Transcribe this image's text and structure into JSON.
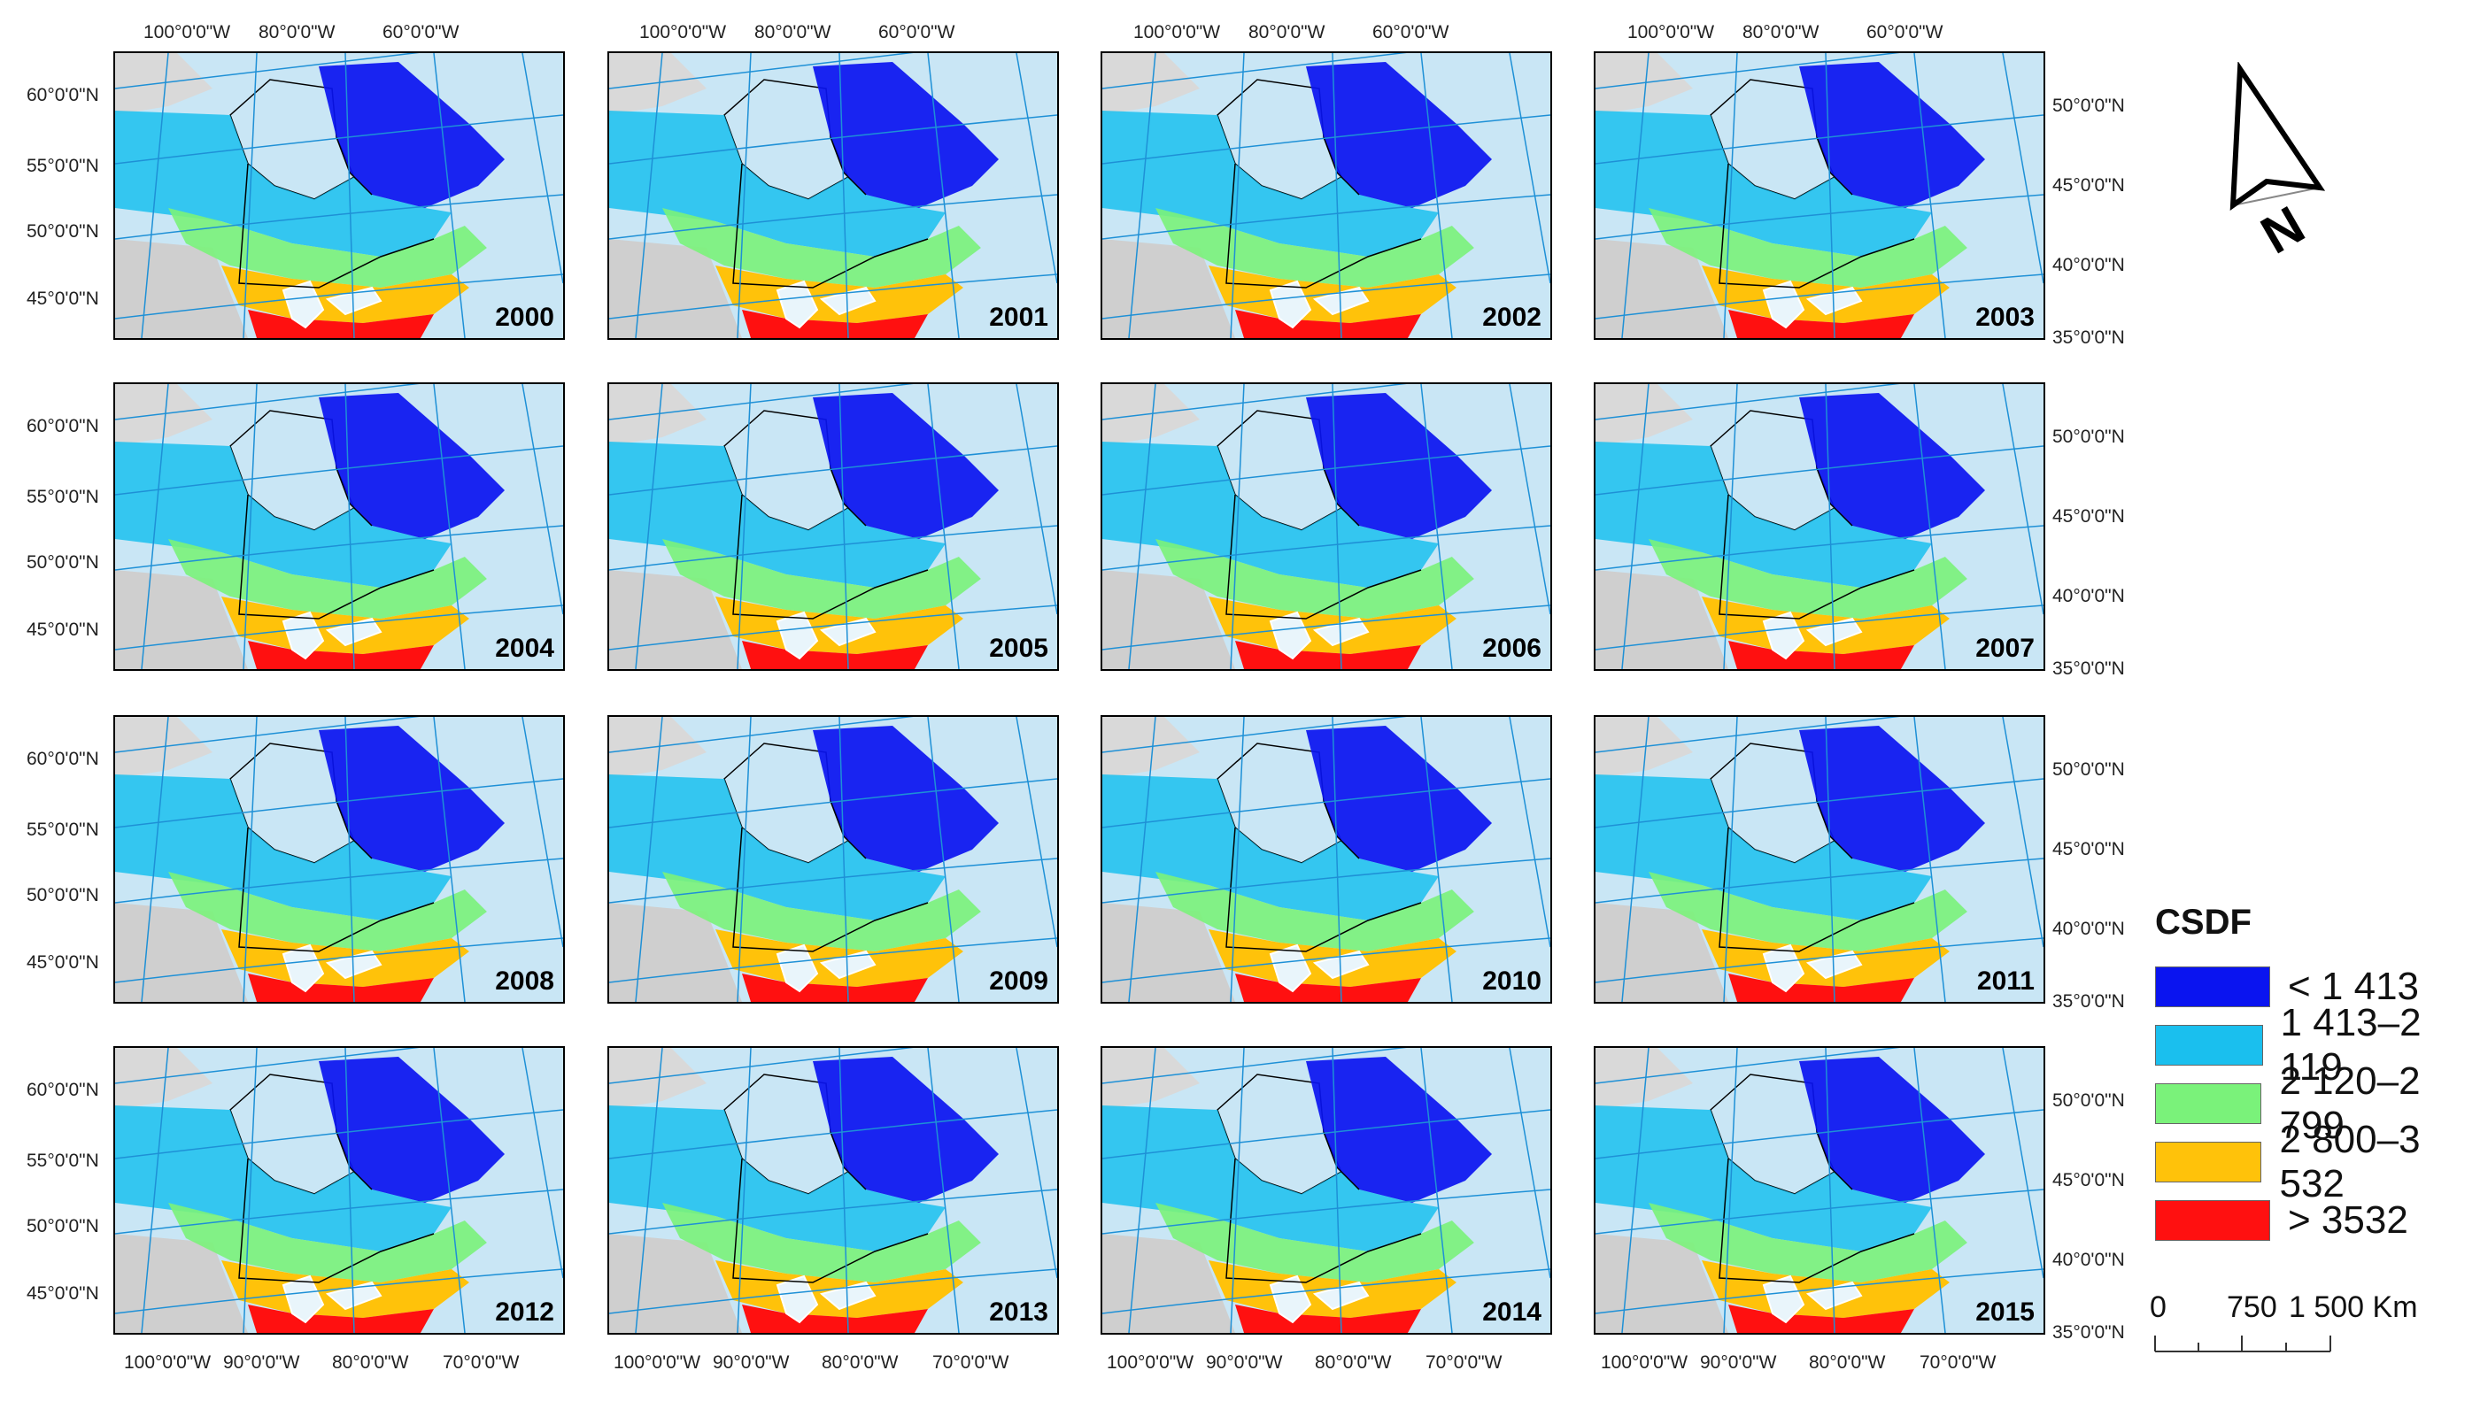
{
  "legend": {
    "title": "CSDF",
    "items": [
      {
        "label": "< 1 413",
        "color": "#0a14f0"
      },
      {
        "label": "1 413–2 119",
        "color": "#1abfee"
      },
      {
        "label": "2 120–2 799",
        "color": "#7af27a"
      },
      {
        "label": "2 800–3 532",
        "color": "#ffc20a"
      },
      {
        "label": "> 3532",
        "color": "#ff1010"
      }
    ]
  },
  "scale_bar": {
    "labels": [
      "0",
      "750",
      "1 500 Km"
    ]
  },
  "north_arrow": {
    "label": "N"
  },
  "axis_labels": {
    "top_lon": [
      "100°0'0\"W",
      "80°0'0\"W",
      "60°0'0\"W"
    ],
    "bottom_lon": [
      "100°0'0\"W",
      "90°0'0\"W",
      "80°0'0\"W",
      "70°0'0\"W"
    ],
    "left_lat": [
      "60°0'0\"N",
      "55°0'0\"N",
      "50°0'0\"N",
      "45°0'0\"N"
    ],
    "right_lat": [
      "50°0'0\"N",
      "45°0'0\"N",
      "40°0'0\"N",
      "35°0'0\"N"
    ]
  },
  "maps": [
    {
      "year": "2000"
    },
    {
      "year": "2001"
    },
    {
      "year": "2002"
    },
    {
      "year": "2003"
    },
    {
      "year": "2004"
    },
    {
      "year": "2005"
    },
    {
      "year": "2006"
    },
    {
      "year": "2007"
    },
    {
      "year": "2008"
    },
    {
      "year": "2009"
    },
    {
      "year": "2010"
    },
    {
      "year": "2011"
    },
    {
      "year": "2012"
    },
    {
      "year": "2013"
    },
    {
      "year": "2014"
    },
    {
      "year": "2015"
    }
  ]
}
